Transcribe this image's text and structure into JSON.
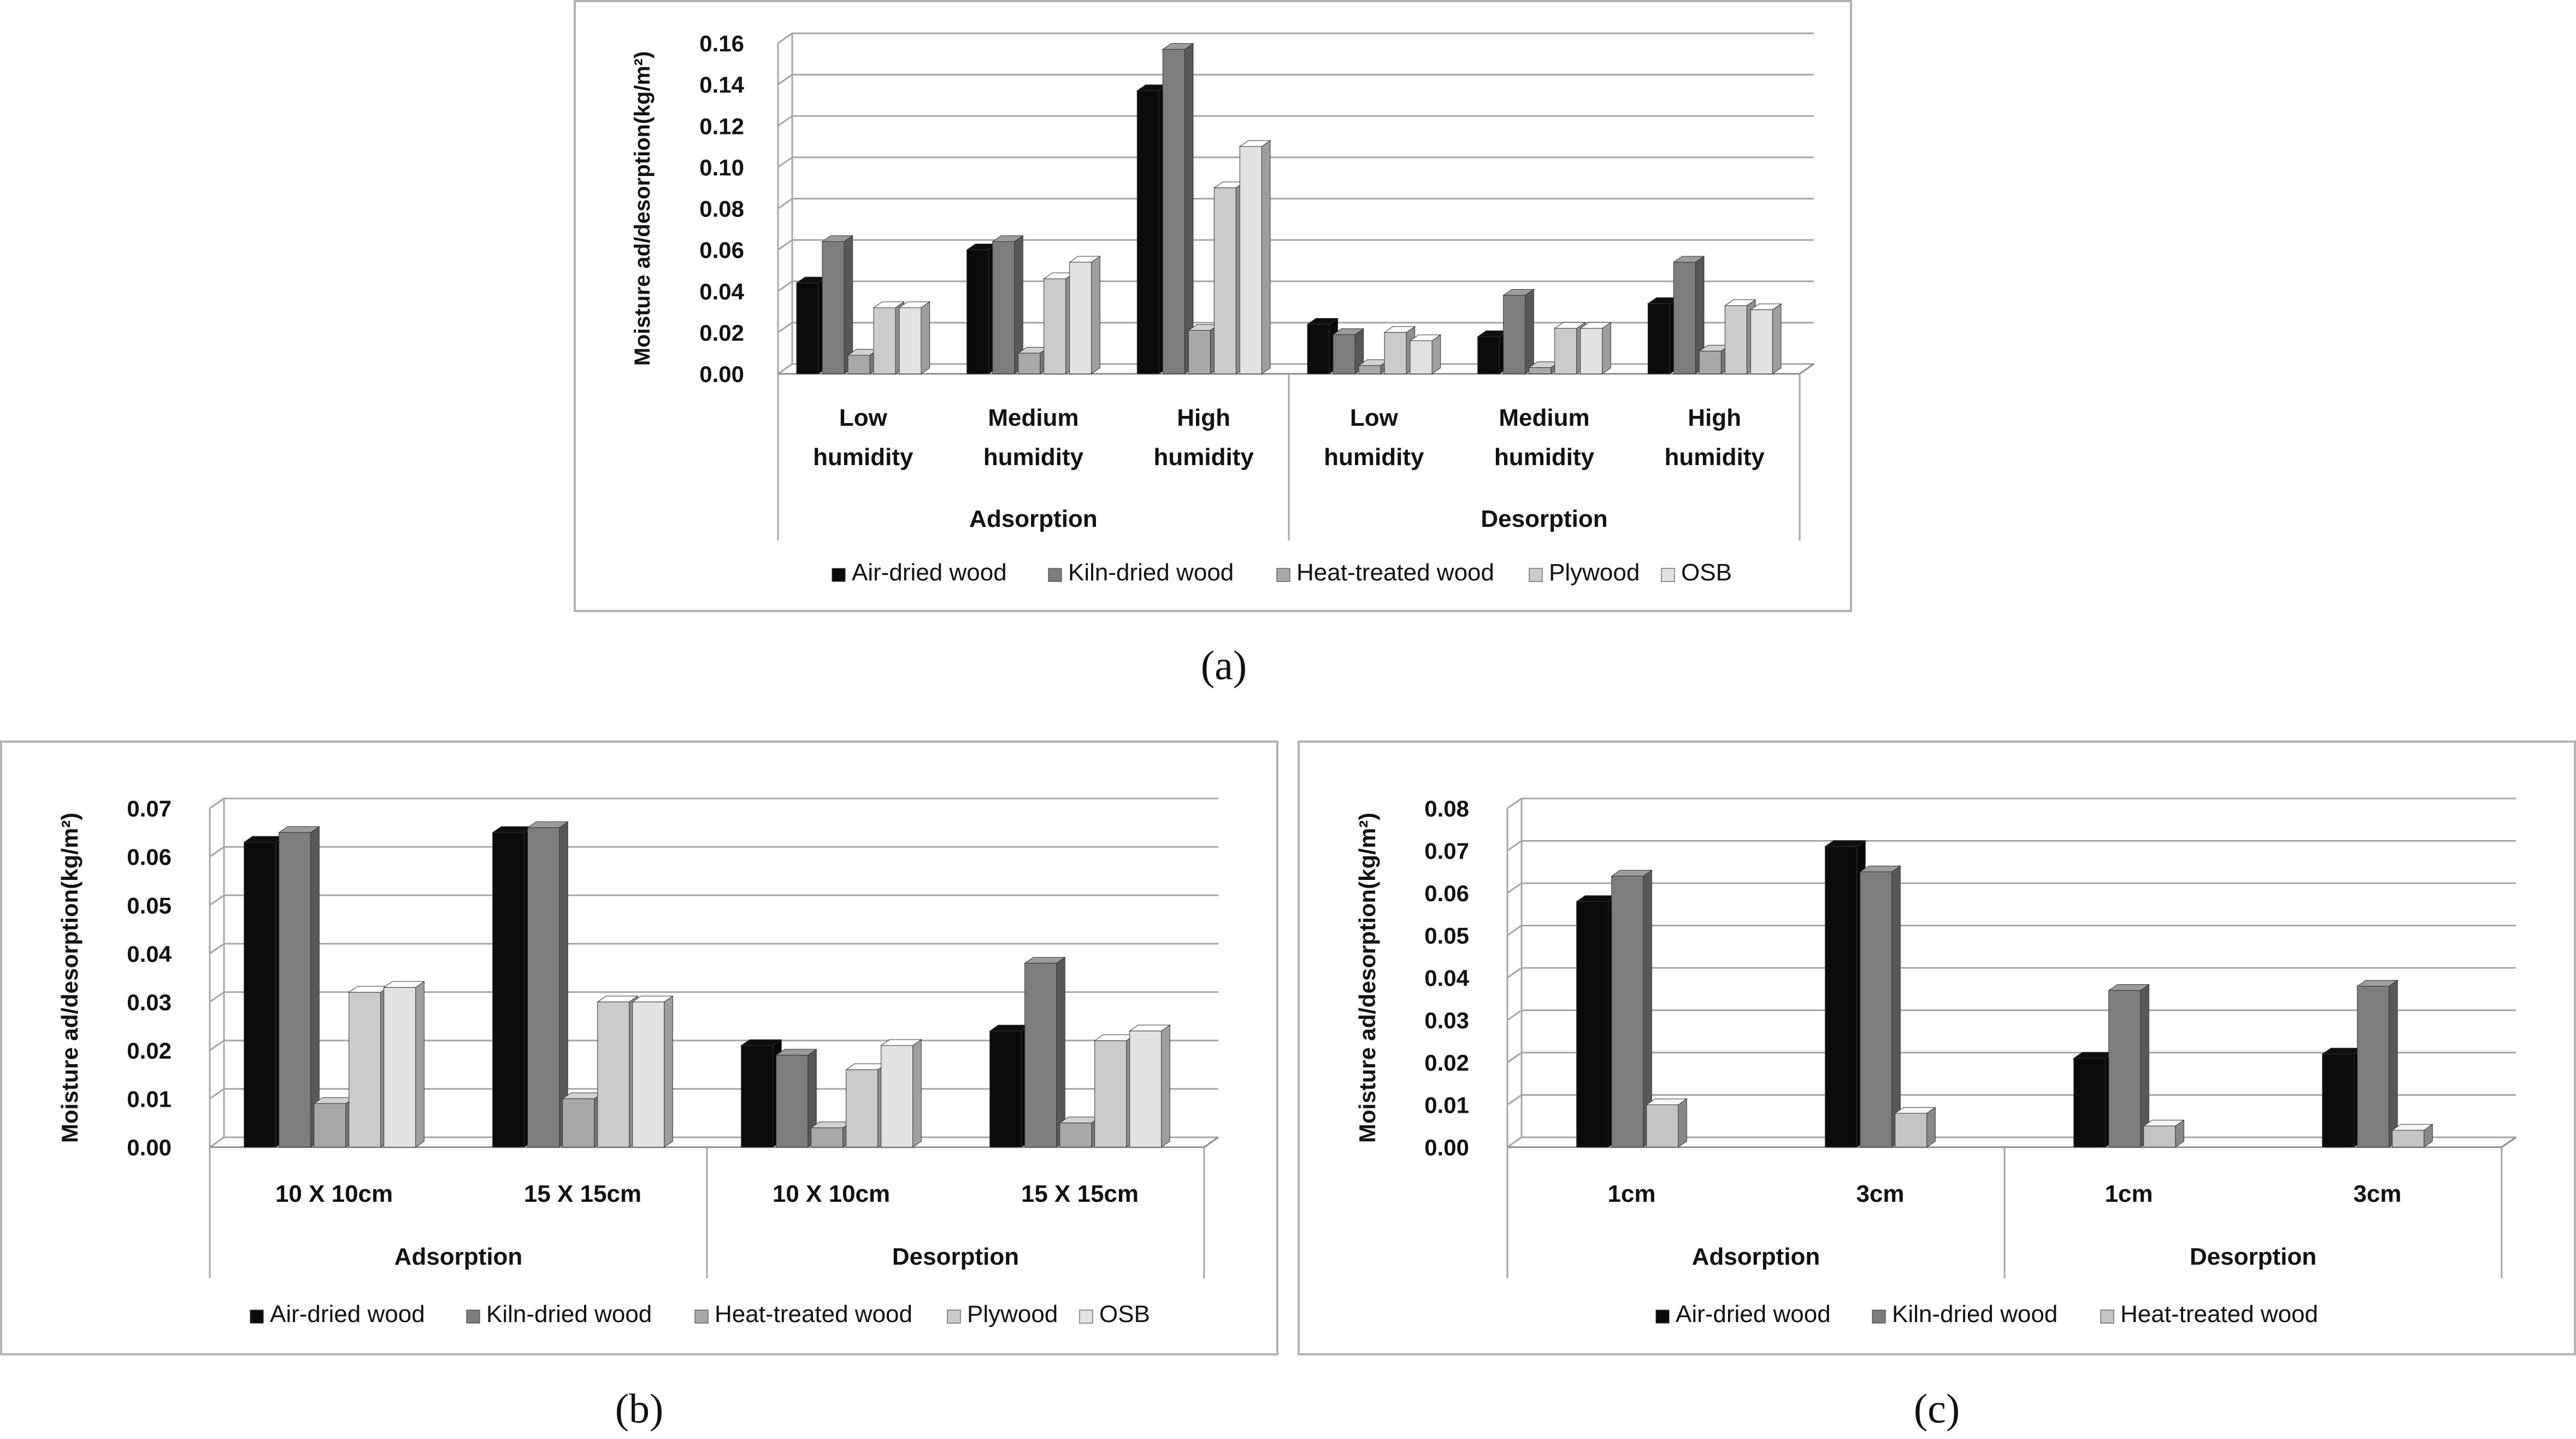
{
  "captions": {
    "a": "(a)",
    "b": "(b)",
    "c": "(c)"
  },
  "chart_data": [
    {
      "id": "a",
      "type": "bar",
      "ylabel": "Moisture ad/desorption(kg/m²)",
      "ylim": [
        0,
        0.16
      ],
      "y_ticks": [
        "0.00",
        "0.02",
        "0.04",
        "0.06",
        "0.08",
        "0.10",
        "0.12",
        "0.14",
        "0.16"
      ],
      "categories": [
        [
          "Low",
          "humidity"
        ],
        [
          "Medium",
          "humidity"
        ],
        [
          "High",
          "humidity"
        ],
        [
          "Low",
          "humidity"
        ],
        [
          "Medium",
          "humidity"
        ],
        [
          "High",
          "humidity"
        ]
      ],
      "groups": [
        {
          "label": "Adsorption",
          "span": 3
        },
        {
          "label": "Desorption",
          "span": 3
        }
      ],
      "grid": true,
      "legend_position": "bottom",
      "series": [
        {
          "name": "Air-dried wood",
          "color": "#0b0b0b",
          "values": [
            0.044,
            0.06,
            0.137,
            0.024,
            0.018,
            0.034
          ]
        },
        {
          "name": "Kiln-dried wood",
          "color": "#7d7d7d",
          "values": [
            0.064,
            0.064,
            0.157,
            0.019,
            0.038,
            0.054
          ]
        },
        {
          "name": "Heat-treated wood",
          "color": "#a8a8a8",
          "values": [
            0.009,
            0.01,
            0.021,
            0.004,
            0.003,
            0.011
          ]
        },
        {
          "name": "Plywood",
          "color": "#cbcbcb",
          "values": [
            0.032,
            0.046,
            0.09,
            0.02,
            0.022,
            0.033
          ]
        },
        {
          "name": "OSB",
          "color": "#e2e2e2",
          "values": [
            0.032,
            0.054,
            0.11,
            0.016,
            0.022,
            0.031
          ]
        }
      ]
    },
    {
      "id": "b",
      "type": "bar",
      "ylabel": "Moisture ad/desorption(kg/m²)",
      "ylim": [
        0,
        0.07
      ],
      "y_ticks": [
        "0.00",
        "0.01",
        "0.02",
        "0.03",
        "0.04",
        "0.05",
        "0.06",
        "0.07"
      ],
      "categories": [
        [
          "10 X 10cm"
        ],
        [
          "15 X 15cm"
        ],
        [
          "10 X 10cm"
        ],
        [
          "15 X 15cm"
        ]
      ],
      "groups": [
        {
          "label": "Adsorption",
          "span": 2
        },
        {
          "label": "Desorption",
          "span": 2
        }
      ],
      "grid": true,
      "legend_position": "bottom",
      "series": [
        {
          "name": "Air-dried wood",
          "color": "#0b0b0b",
          "values": [
            0.063,
            0.065,
            0.021,
            0.024
          ]
        },
        {
          "name": "Kiln-dried wood",
          "color": "#7d7d7d",
          "values": [
            0.065,
            0.066,
            0.019,
            0.038
          ]
        },
        {
          "name": "Heat-treated wood",
          "color": "#a8a8a8",
          "values": [
            0.009,
            0.01,
            0.004,
            0.005
          ]
        },
        {
          "name": "Plywood",
          "color": "#cbcbcb",
          "values": [
            0.032,
            0.03,
            0.016,
            0.022
          ]
        },
        {
          "name": "OSB",
          "color": "#e2e2e2",
          "values": [
            0.033,
            0.03,
            0.021,
            0.024
          ]
        }
      ]
    },
    {
      "id": "c",
      "type": "bar",
      "ylabel": "Moisture ad/desorption(kg/m²)",
      "ylim": [
        0,
        0.08
      ],
      "y_ticks": [
        "0.00",
        "0.01",
        "0.02",
        "0.03",
        "0.04",
        "0.05",
        "0.06",
        "0.07",
        "0.08"
      ],
      "categories": [
        [
          "1cm"
        ],
        [
          "3cm"
        ],
        [
          "1cm"
        ],
        [
          "3cm"
        ]
      ],
      "groups": [
        {
          "label": "Adsorption",
          "span": 2
        },
        {
          "label": "Desorption",
          "span": 2
        }
      ],
      "grid": true,
      "legend_position": "bottom",
      "series": [
        {
          "name": "Air-dried wood",
          "color": "#0b0b0b",
          "values": [
            0.058,
            0.071,
            0.021,
            0.022
          ]
        },
        {
          "name": "Kiln-dried wood",
          "color": "#7d7d7d",
          "values": [
            0.064,
            0.065,
            0.037,
            0.038
          ]
        },
        {
          "name": "Heat-treated wood",
          "color": "#c4c4c4",
          "values": [
            0.01,
            0.008,
            0.005,
            0.004
          ]
        }
      ]
    }
  ]
}
